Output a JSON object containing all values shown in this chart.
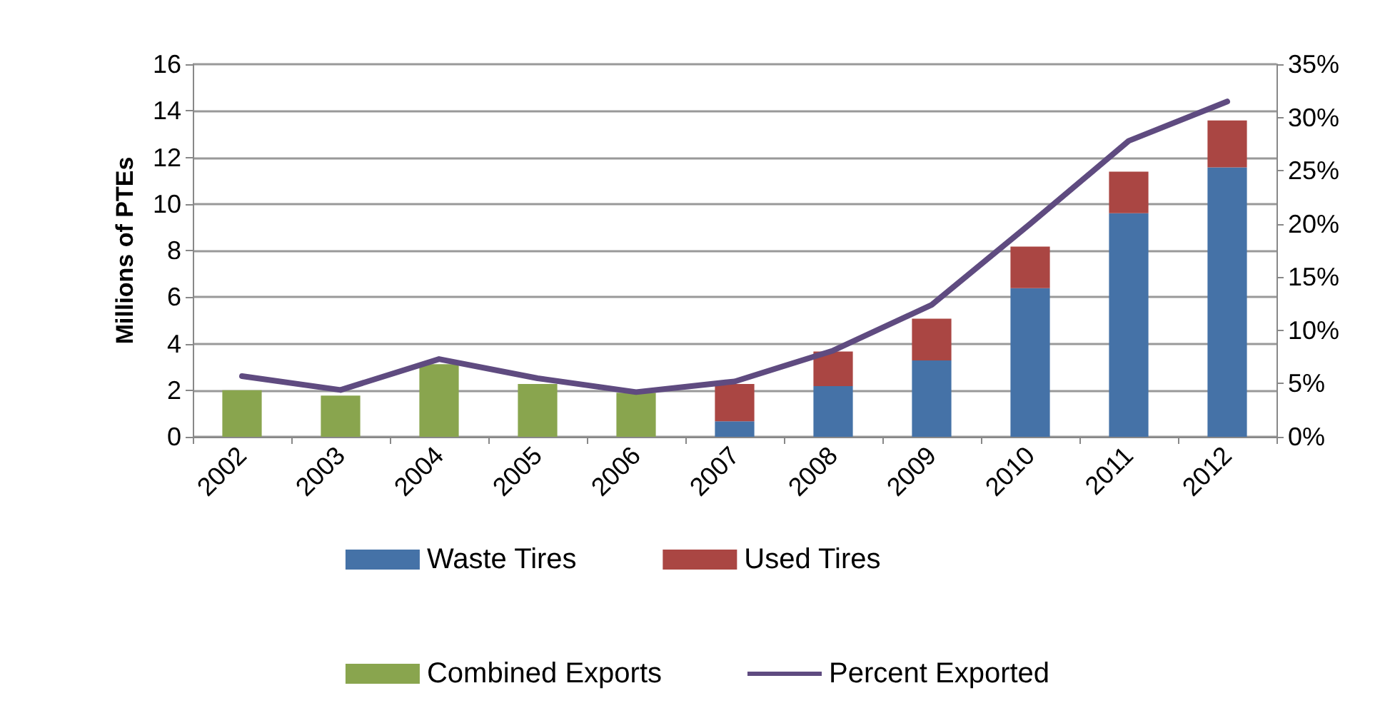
{
  "chart_data": {
    "type": "bar",
    "ylabel": "Millions of PTEs",
    "categories": [
      "2002",
      "2003",
      "2004",
      "2005",
      "2006",
      "2007",
      "2008",
      "2009",
      "2010",
      "2011",
      "2012"
    ],
    "stacked": true,
    "series": [
      {
        "name": "Waste Tires",
        "color": "#4572a7",
        "values": [
          null,
          null,
          null,
          null,
          null,
          0.67,
          2.18,
          3.28,
          6.38,
          9.6,
          11.57
        ]
      },
      {
        "name": "Used Tires",
        "color": "#aa4643",
        "values": [
          null,
          null,
          null,
          null,
          null,
          1.6,
          1.48,
          1.79,
          1.79,
          1.79,
          2.02
        ]
      },
      {
        "name": "Combined Exports",
        "color": "#89a54e",
        "values": [
          2.0,
          1.77,
          3.12,
          2.27,
          1.89,
          null,
          null,
          null,
          null,
          null,
          null
        ]
      },
      {
        "name": "Percent Exported",
        "type": "line",
        "axis": "y2",
        "color": "#5f4b80",
        "values": [
          5.7,
          4.4,
          7.3,
          5.5,
          4.2,
          5.2,
          8.1,
          12.4,
          20.0,
          27.8,
          31.5
        ]
      }
    ],
    "ylim": [
      0,
      16
    ],
    "yticks": [
      0,
      2,
      4,
      6,
      8,
      10,
      12,
      14,
      16
    ],
    "y2lim": [
      0,
      35
    ],
    "y2ticks": [
      {
        "value": 0,
        "label": "0%"
      },
      {
        "value": 5,
        "label": "5%"
      },
      {
        "value": 10,
        "label": "10%"
      },
      {
        "value": 15,
        "label": "15%"
      },
      {
        "value": 20,
        "label": "20%"
      },
      {
        "value": 25,
        "label": "25%"
      },
      {
        "value": 30,
        "label": "30%"
      },
      {
        "value": 35,
        "label": "35%"
      }
    ],
    "grid": "y",
    "legend": "bottom",
    "marker": "none"
  }
}
